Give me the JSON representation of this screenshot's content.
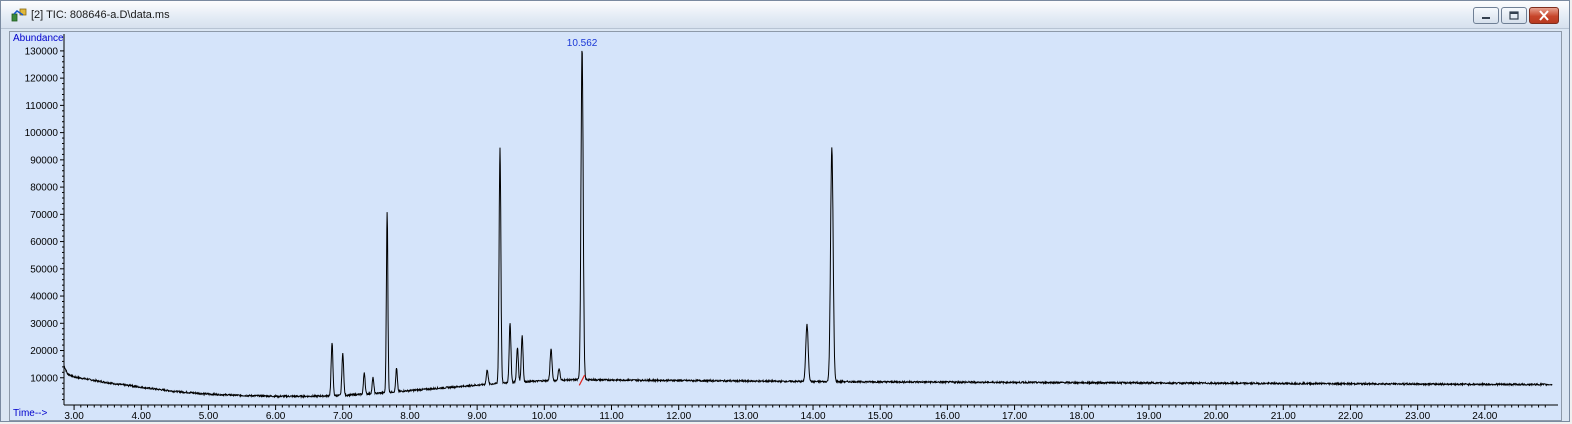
{
  "window": {
    "title": "[2] TIC: 808646-a.D\\data.ms",
    "app_icon": "chemstation-icon",
    "buttons": {
      "minimize": "minimize-icon",
      "maximize": "maximize-icon",
      "close": "close-icon"
    }
  },
  "colors": {
    "plot_background": "#d5e4fa",
    "trace": "#000000",
    "axis_label": "#0000cc",
    "annotation": "#1a37d6",
    "baseline_marker": "#e0201a"
  },
  "chart_data": {
    "type": "line",
    "ylabel": "Abundance",
    "xlabel": "Time-->",
    "xlim": [
      2.85,
      25.0
    ],
    "ylim": [
      0,
      134000
    ],
    "x_ticks": [
      3.0,
      4.0,
      5.0,
      6.0,
      7.0,
      8.0,
      9.0,
      10.0,
      11.0,
      12.0,
      13.0,
      14.0,
      15.0,
      16.0,
      17.0,
      18.0,
      19.0,
      20.0,
      21.0,
      22.0,
      23.0,
      24.0
    ],
    "x_tick_labels": [
      "3.00",
      "4.00",
      "5.00",
      "6.00",
      "7.00",
      "8.00",
      "9.00",
      "10.00",
      "11.00",
      "12.00",
      "13.00",
      "14.00",
      "15.00",
      "16.00",
      "17.00",
      "18.00",
      "19.00",
      "20.00",
      "21.00",
      "22.00",
      "23.00",
      "24.00"
    ],
    "y_ticks": [
      10000,
      20000,
      30000,
      40000,
      50000,
      60000,
      70000,
      80000,
      90000,
      100000,
      110000,
      120000,
      130000
    ],
    "y_tick_labels": [
      "10000",
      "20000",
      "30000",
      "40000",
      "50000",
      "60000",
      "70000",
      "80000",
      "90000",
      "100000",
      "110000",
      "120000",
      "130000"
    ],
    "baseline": [
      [
        2.85,
        14500
      ],
      [
        2.9,
        11500
      ],
      [
        3.0,
        10300
      ],
      [
        3.5,
        8200
      ],
      [
        4.0,
        6500
      ],
      [
        4.5,
        5000
      ],
      [
        5.0,
        4000
      ],
      [
        5.5,
        3500
      ],
      [
        6.0,
        3200
      ],
      [
        6.5,
        3200
      ],
      [
        7.0,
        3500
      ],
      [
        7.5,
        4300
      ],
      [
        8.0,
        5300
      ],
      [
        8.5,
        6300
      ],
      [
        9.0,
        7300
      ],
      [
        9.5,
        8300
      ],
      [
        10.0,
        8900
      ],
      [
        10.5,
        9300
      ],
      [
        11.0,
        9200
      ],
      [
        12.0,
        9000
      ],
      [
        13.0,
        8800
      ],
      [
        14.0,
        8600
      ],
      [
        15.0,
        8500
      ],
      [
        16.0,
        8400
      ],
      [
        17.0,
        8300
      ],
      [
        18.0,
        8200
      ],
      [
        19.0,
        8100
      ],
      [
        20.0,
        8000
      ],
      [
        21.0,
        7900
      ],
      [
        22.0,
        7800
      ],
      [
        23.0,
        7700
      ],
      [
        24.0,
        7600
      ],
      [
        25.0,
        7500
      ]
    ],
    "peaks": [
      {
        "rt": 3.65,
        "height": 7500,
        "width": 0.012
      },
      {
        "rt": 3.85,
        "height": 7300,
        "width": 0.012
      },
      {
        "rt": 6.84,
        "height": 23000,
        "width": 0.013
      },
      {
        "rt": 7.0,
        "height": 19000,
        "width": 0.013
      },
      {
        "rt": 7.32,
        "height": 12000,
        "width": 0.012
      },
      {
        "rt": 7.45,
        "height": 10000,
        "width": 0.012
      },
      {
        "rt": 7.66,
        "height": 71000,
        "width": 0.011
      },
      {
        "rt": 7.8,
        "height": 13500,
        "width": 0.012
      },
      {
        "rt": 9.15,
        "height": 13000,
        "width": 0.013
      },
      {
        "rt": 9.34,
        "height": 94500,
        "width": 0.013
      },
      {
        "rt": 9.49,
        "height": 30000,
        "width": 0.013
      },
      {
        "rt": 9.6,
        "height": 21000,
        "width": 0.013
      },
      {
        "rt": 9.67,
        "height": 25500,
        "width": 0.013
      },
      {
        "rt": 10.1,
        "height": 20500,
        "width": 0.014
      },
      {
        "rt": 10.22,
        "height": 13500,
        "width": 0.013
      },
      {
        "rt": 10.562,
        "height": 131000,
        "width": 0.016
      },
      {
        "rt": 13.91,
        "height": 29500,
        "width": 0.018
      },
      {
        "rt": 14.28,
        "height": 94500,
        "width": 0.019
      }
    ],
    "annotations": [
      {
        "x": 10.562,
        "y": 131000,
        "text": "10.562"
      }
    ],
    "integration_marker": {
      "x_start": 10.52,
      "x_end": 10.6,
      "y_start": 7200,
      "y_end": 11000
    },
    "grid": false
  }
}
